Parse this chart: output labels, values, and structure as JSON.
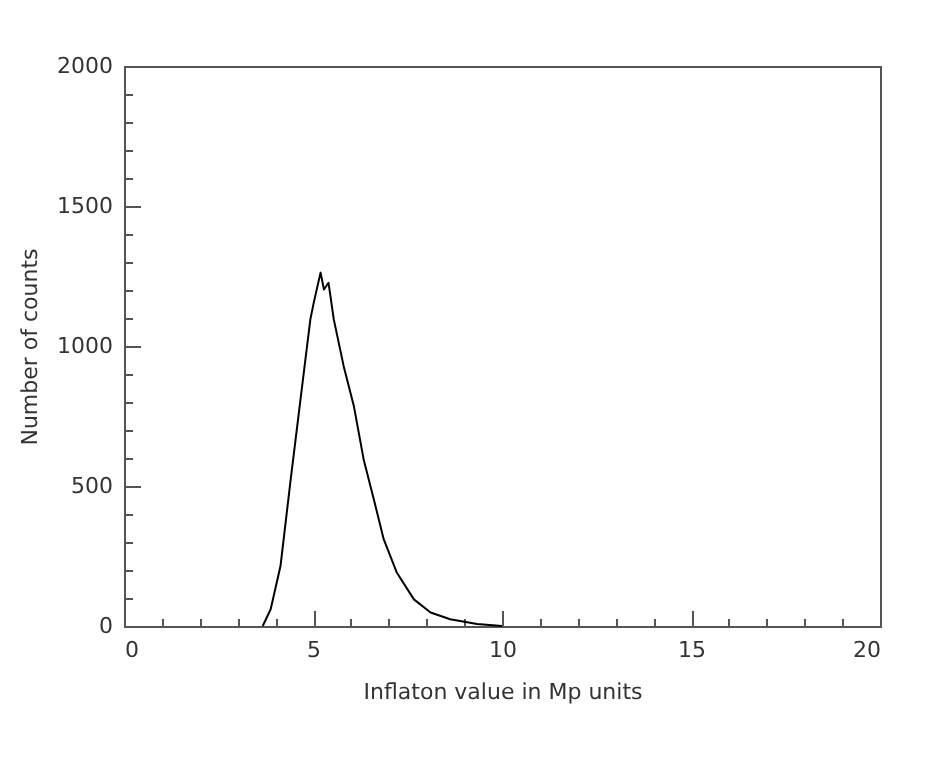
{
  "chart_data": {
    "type": "line",
    "xlabel": "Inflaton value in Mp units",
    "ylabel": "Number of counts",
    "x": [
      3.67,
      3.88,
      4.14,
      4.41,
      4.67,
      4.93,
      5.02,
      5.2,
      5.29,
      5.41,
      5.55,
      5.81,
      6.08,
      6.34,
      6.61,
      6.87,
      7.22,
      7.67,
      8.11,
      8.63,
      9.34,
      10.0
    ],
    "values": [
      0,
      60,
      214,
      524,
      810,
      1095,
      1155,
      1262,
      1202,
      1226,
      1095,
      929,
      786,
      595,
      452,
      310,
      190,
      95,
      48,
      24,
      7,
      0
    ],
    "color": "#000000",
    "xlim": [
      0,
      20
    ],
    "ylim": [
      0,
      2000
    ],
    "xticks": [
      0,
      {
        "value": 1,
        "label": null
      },
      {
        "value": 2,
        "label": null
      },
      {
        "value": 3,
        "label": null
      },
      {
        "value": 4,
        "label": null
      },
      5,
      {
        "value": 6,
        "label": null
      },
      {
        "value": 7,
        "label": null
      },
      {
        "value": 8,
        "label": null
      },
      {
        "value": 9,
        "label": null
      },
      10,
      {
        "value": 11,
        "label": null
      },
      {
        "value": 12,
        "label": null
      },
      {
        "value": 13,
        "label": null
      },
      {
        "value": 14,
        "label": null
      },
      15,
      {
        "value": 16,
        "label": null
      },
      {
        "value": 17,
        "label": null
      },
      {
        "value": 18,
        "label": null
      },
      {
        "value": 19,
        "label": null
      },
      20
    ],
    "yticks": [
      0,
      {
        "value": 100,
        "label": null
      },
      {
        "value": 200,
        "label": null
      },
      {
        "value": 300,
        "label": null
      },
      {
        "value": 400,
        "label": null
      },
      500,
      {
        "value": 600,
        "label": null
      },
      {
        "value": 700,
        "label": null
      },
      {
        "value": 800,
        "label": null
      },
      {
        "value": 900,
        "label": null
      },
      1000,
      {
        "value": 1100,
        "label": null
      },
      {
        "value": 1200,
        "label": null
      },
      {
        "value": 1300,
        "label": null
      },
      {
        "value": 1400,
        "label": null
      },
      1500,
      {
        "value": 1600,
        "label": null
      },
      {
        "value": 1700,
        "label": null
      },
      {
        "value": 1800,
        "label": null
      },
      {
        "value": 1900,
        "label": null
      },
      2000
    ],
    "grid": false
  }
}
